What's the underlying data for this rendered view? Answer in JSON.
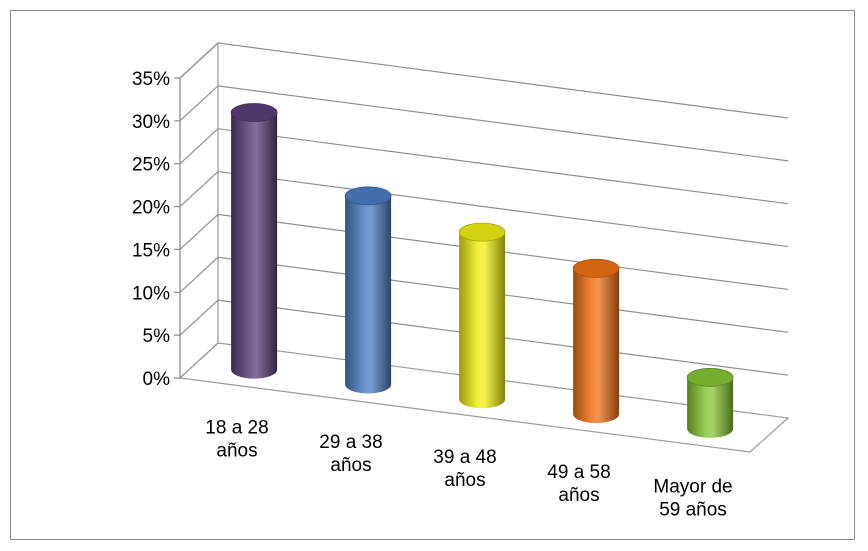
{
  "chart_data": {
    "type": "bar",
    "style": "3d-cylinder",
    "categories": [
      "18 a 28 años",
      "29 a 38 años",
      "39 a 48 años",
      "49 a 58 años",
      "Mayor de 59 años"
    ],
    "category_lines": [
      [
        "18 a 28",
        "años"
      ],
      [
        "29 a 38",
        "años"
      ],
      [
        "39 a 48",
        "años"
      ],
      [
        "49 a 58",
        "años"
      ],
      [
        "Mayor de",
        "59 años"
      ]
    ],
    "values": [
      30,
      22,
      19.5,
      17,
      6
    ],
    "colors": [
      "#5b3f7a",
      "#4a7ec2",
      "#f0ef12",
      "#f07214",
      "#86c535"
    ],
    "yticks": [
      "0%",
      "5%",
      "10%",
      "15%",
      "20%",
      "25%",
      "30%",
      "35%"
    ],
    "ylim": [
      0,
      35
    ],
    "grid": true,
    "legend": "none"
  }
}
